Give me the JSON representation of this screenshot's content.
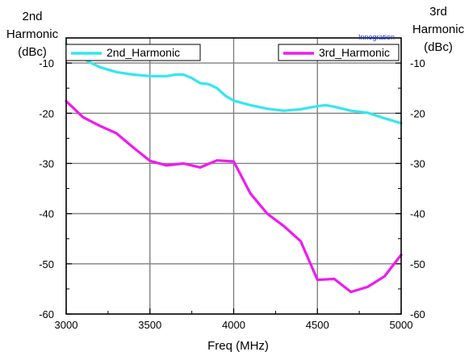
{
  "chart_data": {
    "type": "line",
    "xlabel": "Freq (MHz)",
    "ylabel_left": [
      "2nd",
      "Harmonic",
      "(dBc)"
    ],
    "ylabel_right": [
      "3rd",
      "Harmonic",
      "(dBc)"
    ],
    "xlim": [
      3000,
      5000
    ],
    "ylim": [
      -60,
      -5
    ],
    "x_ticks": [
      3000,
      3500,
      4000,
      4500,
      5000
    ],
    "y_ticks": [
      -10,
      -20,
      -30,
      -40,
      -50,
      -60
    ],
    "grid": true,
    "legend_placement": "top",
    "watermark": "Innogration",
    "series": [
      {
        "name": "2nd_Harmonic",
        "color": "#33e6f0",
        "axis": "left",
        "x": [
          3000,
          3050,
          3100,
          3150,
          3200,
          3300,
          3400,
          3500,
          3600,
          3650,
          3700,
          3750,
          3800,
          3850,
          3900,
          3950,
          4000,
          4100,
          4200,
          4300,
          4400,
          4500,
          4550,
          4600,
          4700,
          4800,
          4900,
          5000
        ],
        "y": [
          -6.2,
          -7.8,
          -9.0,
          -10.0,
          -10.8,
          -11.8,
          -12.3,
          -12.6,
          -12.6,
          -12.3,
          -12.3,
          -13.0,
          -14.0,
          -14.2,
          -15.0,
          -16.5,
          -17.5,
          -18.4,
          -19.1,
          -19.5,
          -19.2,
          -18.6,
          -18.4,
          -18.7,
          -19.5,
          -19.9,
          -21.0,
          -22.0
        ]
      },
      {
        "name": "3rd_Harmonic",
        "color": "#f01aef",
        "axis": "right",
        "x": [
          3000,
          3100,
          3200,
          3300,
          3400,
          3500,
          3600,
          3700,
          3800,
          3900,
          4000,
          4100,
          4200,
          4300,
          4400,
          4500,
          4600,
          4700,
          4800,
          4900,
          5000
        ],
        "y": [
          -17.6,
          -20.8,
          -22.5,
          -24.0,
          -26.8,
          -29.5,
          -30.4,
          -30.0,
          -30.8,
          -29.4,
          -29.6,
          -36.0,
          -40.0,
          -42.5,
          -45.5,
          -53.2,
          -53.0,
          -55.6,
          -54.6,
          -52.5,
          -48.2
        ]
      }
    ]
  }
}
